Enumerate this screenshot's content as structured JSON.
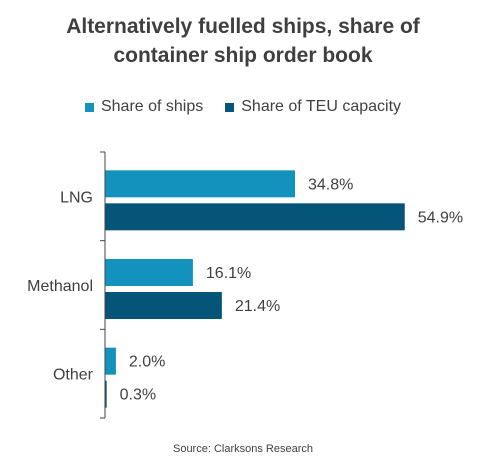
{
  "title_line1": "Alternatively fuelled ships, share of",
  "title_line2": "container ship order book",
  "source": "Source: Clarksons Research",
  "colors": {
    "share_of_ships": "#1492be",
    "share_of_teu": "#045578",
    "axis": "#444444",
    "text": "#404040"
  },
  "chart_data": {
    "type": "bar",
    "orientation": "horizontal",
    "title": "Alternatively fuelled ships, share of container ship order book",
    "categories": [
      "LNG",
      "Methanol",
      "Other"
    ],
    "series": [
      {
        "name": "Share of ships",
        "values": [
          34.8,
          16.1,
          2.0
        ],
        "labels": [
          "34.8%",
          "16.1%",
          "2.0%"
        ]
      },
      {
        "name": "Share of TEU capacity",
        "values": [
          54.9,
          21.4,
          0.3
        ],
        "labels": [
          "54.9%",
          "21.4%",
          "0.3%"
        ]
      }
    ],
    "xlim": [
      0,
      58
    ],
    "grid": false,
    "legend_position": "top"
  }
}
